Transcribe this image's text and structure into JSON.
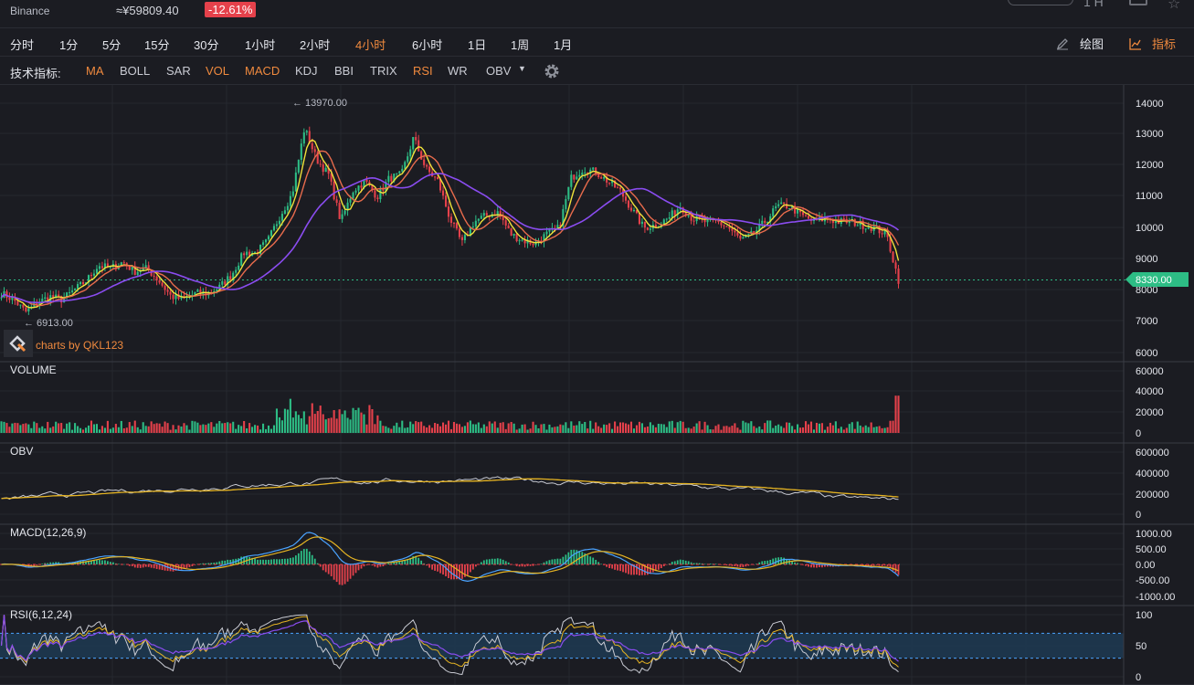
{
  "ticker": {
    "exchange": "Binance",
    "price": "≈¥59809.40",
    "change": "-12.61%",
    "top_right_text": "1 H"
  },
  "intervals": {
    "items": [
      "分时",
      "1分",
      "5分",
      "15分",
      "30分",
      "1小时",
      "2小时",
      "4小时",
      "6小时",
      "1日",
      "1周",
      "1月"
    ],
    "active": "4小时",
    "draw_label": "绘图",
    "indicator_label": "指标"
  },
  "indicators": {
    "label": "技术指标:",
    "items": [
      {
        "name": "MA",
        "on": true
      },
      {
        "name": "BOLL",
        "on": false
      },
      {
        "name": "SAR",
        "on": false
      },
      {
        "name": "VOL",
        "on": true
      },
      {
        "name": "MACD",
        "on": true
      },
      {
        "name": "KDJ",
        "on": false
      },
      {
        "name": "BBI",
        "on": false
      },
      {
        "name": "TRIX",
        "on": false
      },
      {
        "name": "RSI",
        "on": true
      },
      {
        "name": "WR",
        "on": false
      },
      {
        "name": "OBV",
        "on": false
      }
    ]
  },
  "chart": {
    "high_label": "← 13970.00",
    "low_label": "← 6913.00",
    "current_price": "8330.00",
    "watermark": "charts by QKL123",
    "colors": {
      "up": "#2dbd85",
      "down": "#e5414b",
      "ma_fast": "#f0e23a",
      "ma_mid": "#e86b4c",
      "ma_slow": "#8a4cf0"
    }
  },
  "chart_data": {
    "type": "line",
    "panes": [
      {
        "name": "price",
        "ticks": [
          "14000",
          "13000",
          "12000",
          "11000",
          "10000",
          "9000",
          "8000",
          "7000",
          "6000"
        ],
        "ylim": [
          6000,
          14000
        ],
        "close": [
          7900,
          7700,
          7300,
          7600,
          7800,
          7700,
          8000,
          8300,
          8800,
          8700,
          8900,
          8600,
          8700,
          8300,
          7800,
          7700,
          7900,
          7900,
          8100,
          8500,
          9200,
          9200,
          9600,
          10400,
          11100,
          13200,
          12200,
          11700,
          10200,
          11200,
          11500,
          11000,
          11600,
          11700,
          12900,
          11900,
          11500,
          10300,
          9500,
          10200,
          10400,
          10500,
          9800,
          9600,
          9500,
          9800,
          10000,
          11600,
          11900,
          11800,
          11500,
          11200,
          10600,
          10000,
          10100,
          10300,
          10700,
          10300,
          10200,
          10200,
          10000,
          9600,
          9800,
          10200,
          10700,
          10700,
          10400,
          10200,
          10300,
          10200,
          10200,
          10100,
          10000,
          9800,
          8330
        ]
      },
      {
        "name": "VOLUME",
        "ticks": [
          "60000",
          "40000",
          "20000",
          "0"
        ],
        "ylim": [
          0,
          60000
        ]
      },
      {
        "name": "OBV",
        "ticks": [
          "600000",
          "400000",
          "200000",
          "0"
        ],
        "ylim": [
          0,
          600000
        ]
      },
      {
        "name": "MACD(12,26,9)",
        "ticks": [
          "1000.00",
          "500.00",
          "0.00",
          "-500.00",
          "-1000.00"
        ],
        "ylim": [
          -1000,
          1000
        ]
      },
      {
        "name": "RSI(6,12,24)",
        "ticks": [
          "100",
          "50",
          "0"
        ],
        "ylim": [
          0,
          100
        ]
      }
    ]
  }
}
